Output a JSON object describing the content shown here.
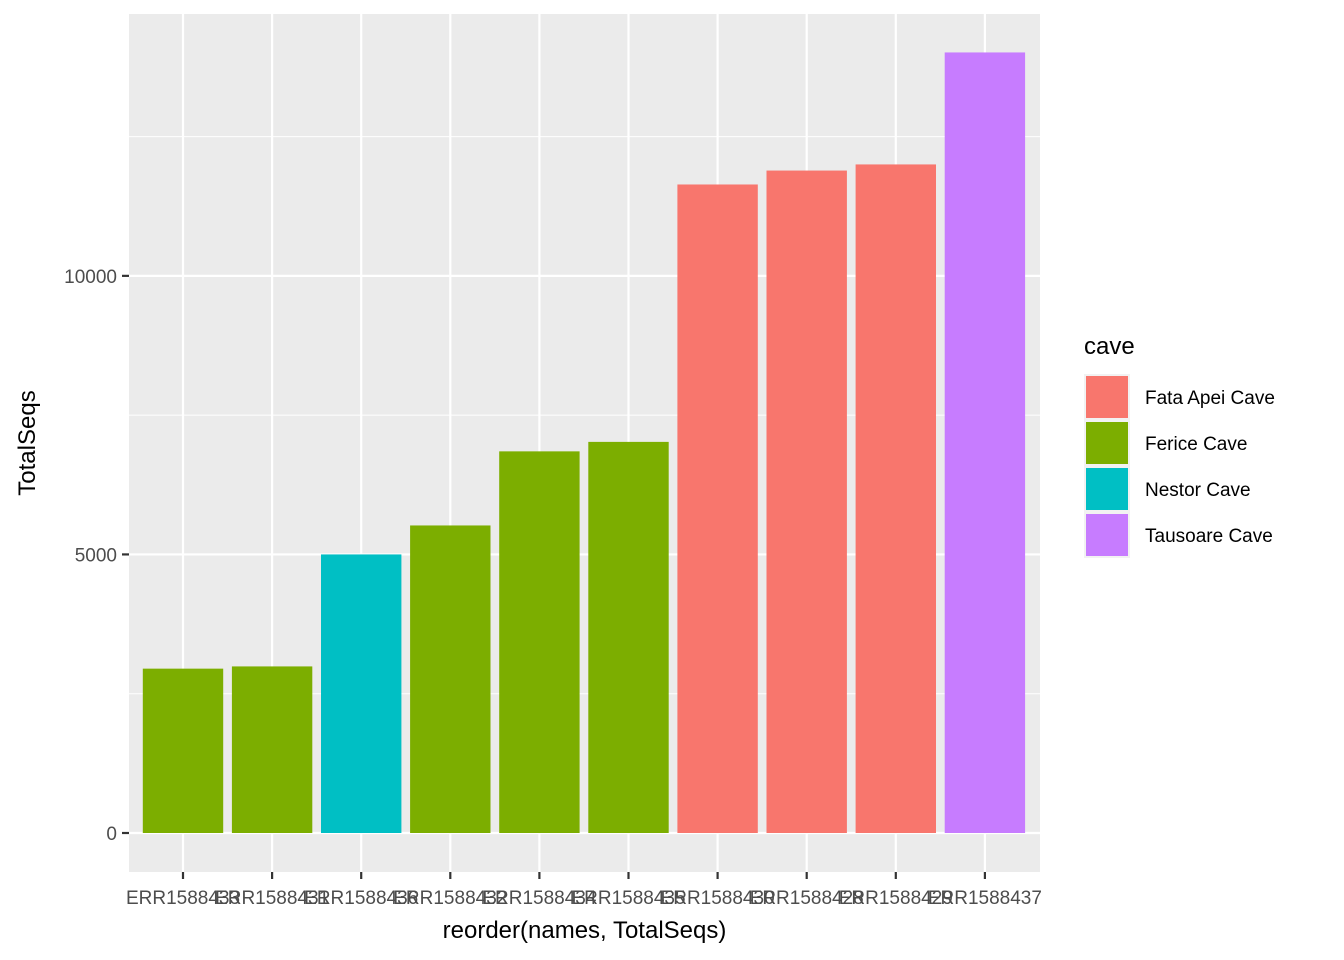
{
  "chart_data": {
    "type": "bar",
    "xlabel": "reorder(names, TotalSeqs)",
    "ylabel": "TotalSeqs",
    "ylim": [
      -700,
      14700
    ],
    "y_ticks": [
      0,
      5000,
      10000
    ],
    "grid": true,
    "legend": {
      "title": "cave",
      "position": "right",
      "entries": [
        {
          "label": "Fata Apei Cave",
          "color": "#F8766D"
        },
        {
          "label": "Ferice Cave",
          "color": "#7CAE00"
        },
        {
          "label": "Nestor Cave",
          "color": "#00BFC4"
        },
        {
          "label": "Tausoare Cave",
          "color": "#C77CFF"
        }
      ]
    },
    "categories": [
      "ERR1588433",
      "ERR1588431",
      "ERR1588436",
      "ERR1588432",
      "ERR1588434",
      "ERR1588435",
      "ERR1588430",
      "ERR1588428",
      "ERR1588429",
      "ERR1588437"
    ],
    "bars": [
      {
        "category": "ERR1588433",
        "value": 2950,
        "cave": "Ferice Cave"
      },
      {
        "category": "ERR1588431",
        "value": 2990,
        "cave": "Ferice Cave"
      },
      {
        "category": "ERR1588436",
        "value": 5000,
        "cave": "Nestor Cave"
      },
      {
        "category": "ERR1588432",
        "value": 5520,
        "cave": "Ferice Cave"
      },
      {
        "category": "ERR1588434",
        "value": 6850,
        "cave": "Ferice Cave"
      },
      {
        "category": "ERR1588435",
        "value": 7020,
        "cave": "Ferice Cave"
      },
      {
        "category": "ERR1588430",
        "value": 11640,
        "cave": "Fata Apei Cave"
      },
      {
        "category": "ERR1588428",
        "value": 11890,
        "cave": "Fata Apei Cave"
      },
      {
        "category": "ERR1588429",
        "value": 12000,
        "cave": "Fata Apei Cave"
      },
      {
        "category": "ERR1588437",
        "value": 14010,
        "cave": "Tausoare Cave"
      }
    ]
  },
  "colors": {
    "panel_background": "#EBEBEB",
    "grid_major": "#FFFFFF",
    "axis_tick": "#333333"
  }
}
